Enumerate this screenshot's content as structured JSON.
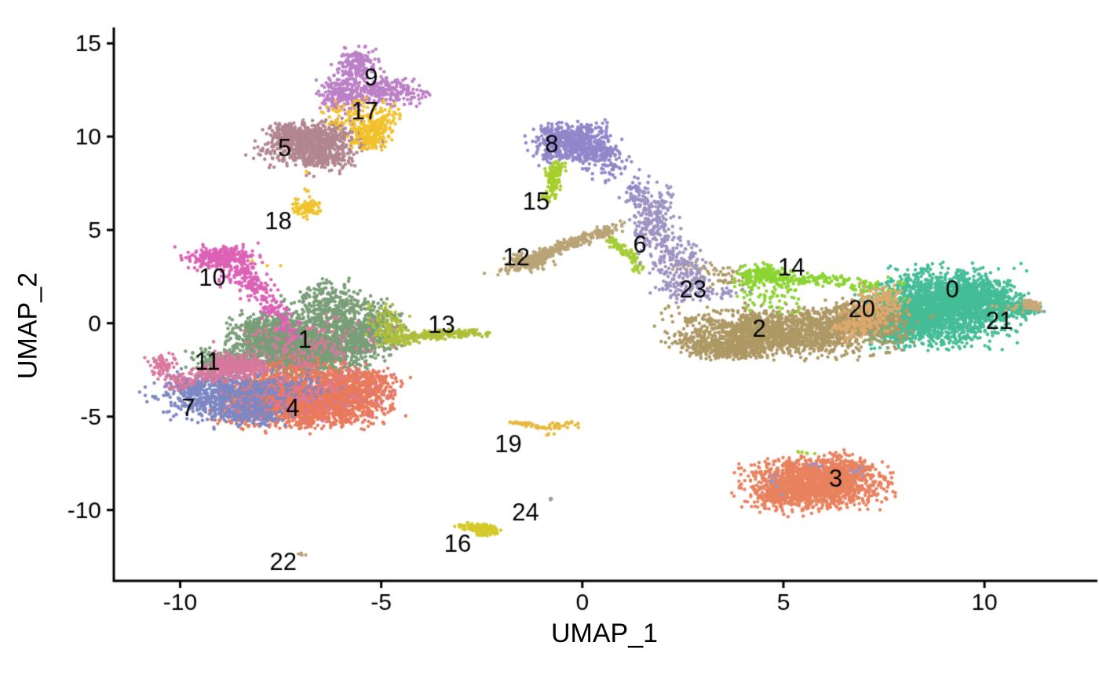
{
  "figure": {
    "xlabel": "UMAP_1",
    "ylabel": "UMAP_2",
    "background": "#ffffff",
    "axis_color": "#000000",
    "label_color": "#000000"
  },
  "chart_data": {
    "type": "scatter",
    "title": "",
    "xlabel": "UMAP_1",
    "ylabel": "UMAP_2",
    "xlim": [
      -11.65,
      12.75
    ],
    "ylim": [
      -13.8,
      15.85
    ],
    "xticks": [
      -10,
      -5,
      0,
      5,
      10
    ],
    "yticks": [
      15,
      10,
      5,
      0,
      -5,
      -10
    ],
    "grid": false,
    "legend": "none",
    "point_radius": 2.2,
    "cluster_label_font_px": 31,
    "tick_label_font_px": 30,
    "clusters": [
      {
        "id": 0,
        "label": "0",
        "color": "#45BD96",
        "label_pos": [
          9.2,
          1.76
        ],
        "blobs": [
          [
            8.9,
            0.85,
            1.0,
            1.1,
            2200,
            0
          ],
          [
            8.15,
            0.25,
            0.5,
            0.5,
            300,
            0
          ],
          [
            9.95,
            1.25,
            0.55,
            0.55,
            350,
            0
          ],
          [
            10.7,
            0.85,
            0.3,
            0.3,
            120,
            0
          ],
          [
            11.1,
            0.75,
            0.22,
            0.15,
            40,
            0
          ],
          [
            7.8,
            -0.55,
            0.4,
            0.45,
            120,
            0
          ],
          [
            7.35,
            0.6,
            0.3,
            0.7,
            60,
            0
          ]
        ]
      },
      {
        "id": 1,
        "label": "1",
        "color": "#7A9E78",
        "label_pos": [
          -6.9,
          -0.97
        ],
        "blobs": [
          [
            -7.0,
            -1.35,
            0.95,
            0.8,
            1700,
            0
          ],
          [
            -6.1,
            0.3,
            0.75,
            0.8,
            450,
            0
          ],
          [
            -7.9,
            -0.5,
            0.5,
            0.6,
            300,
            0
          ],
          [
            -5.35,
            -0.7,
            0.55,
            0.6,
            280,
            0
          ],
          [
            -6.3,
            1.6,
            0.45,
            0.45,
            90,
            0
          ],
          [
            -8.9,
            -2.0,
            0.5,
            0.45,
            200,
            0
          ],
          [
            -4.9,
            0.2,
            0.3,
            0.5,
            60,
            0
          ]
        ]
      },
      {
        "id": 2,
        "label": "2",
        "color": "#AE9965",
        "label_pos": [
          4.4,
          -0.34
        ],
        "blobs": [
          [
            5.2,
            -0.45,
            1.55,
            0.72,
            1400,
            -2
          ],
          [
            4.0,
            -1.0,
            0.7,
            0.5,
            330,
            0
          ],
          [
            6.8,
            0.3,
            0.6,
            0.5,
            300,
            0
          ],
          [
            3.3,
            -1.35,
            0.4,
            0.3,
            90,
            0
          ],
          [
            3.6,
            -1.5,
            0.45,
            0.25,
            90,
            0
          ],
          [
            2.6,
            -0.9,
            0.35,
            0.3,
            40,
            0
          ],
          [
            7.5,
            0.55,
            0.3,
            0.4,
            60,
            0
          ],
          [
            3.6,
            2.5,
            0.35,
            0.3,
            35,
            0
          ]
        ]
      },
      {
        "id": 3,
        "label": "3",
        "color": "#E8825F",
        "label_pos": [
          6.3,
          -8.4
        ],
        "blobs": [
          [
            5.8,
            -8.55,
            0.95,
            0.8,
            1500,
            0
          ],
          [
            5.1,
            -9.2,
            0.5,
            0.4,
            200,
            0
          ],
          [
            6.6,
            -7.95,
            0.4,
            0.35,
            150,
            0
          ]
        ]
      },
      {
        "id": 4,
        "label": "4",
        "color": "#E87A5E",
        "label_pos": [
          -7.2,
          -4.62
        ],
        "blobs": [
          [
            -6.9,
            -4.3,
            1.15,
            0.72,
            1900,
            4
          ],
          [
            -5.6,
            -3.3,
            0.6,
            0.55,
            400,
            0
          ],
          [
            -8.0,
            -3.7,
            0.5,
            0.45,
            300,
            0
          ],
          [
            -7.3,
            -2.7,
            0.8,
            0.45,
            220,
            0
          ]
        ]
      },
      {
        "id": 5,
        "label": "5",
        "color": "#B28691",
        "label_pos": [
          -7.4,
          9.33
        ],
        "blobs": [
          [
            -6.65,
            9.65,
            0.8,
            0.55,
            650,
            35
          ],
          [
            -7.2,
            10.2,
            0.4,
            0.4,
            160,
            0
          ],
          [
            -6.35,
            8.75,
            0.4,
            0.35,
            130,
            0
          ],
          [
            -6.8,
            7.9,
            0.08,
            0.15,
            3,
            0
          ]
        ]
      },
      {
        "id": 6,
        "label": "6",
        "color": "#A5CE37",
        "label_pos": [
          1.43,
          4.16
        ],
        "blobs": [
          [
            1.0,
            3.95,
            0.55,
            0.1,
            90,
            -60
          ],
          [
            1.35,
            2.95,
            0.1,
            0.15,
            14,
            0
          ],
          [
            5.55,
            -6.95,
            0.16,
            0.08,
            6,
            0
          ]
        ]
      },
      {
        "id": 7,
        "label": "7",
        "color": "#7D88C4",
        "label_pos": [
          -9.8,
          -4.62
        ],
        "blobs": [
          [
            -9.0,
            -3.95,
            0.85,
            0.75,
            600,
            20
          ],
          [
            -9.75,
            -3.3,
            0.3,
            0.4,
            110,
            0
          ],
          [
            -8.2,
            -4.9,
            0.5,
            0.35,
            150,
            0
          ],
          [
            -7.8,
            -3.4,
            0.9,
            0.6,
            120,
            0
          ]
        ]
      },
      {
        "id": 8,
        "label": "8",
        "color": "#9187CA",
        "label_pos": [
          -0.76,
          9.54
        ],
        "blobs": [
          [
            -0.25,
            9.8,
            0.52,
            0.58,
            560,
            0
          ],
          [
            0.35,
            9.15,
            0.4,
            0.4,
            120,
            0
          ],
          [
            -0.9,
            9.1,
            0.15,
            0.35,
            25,
            0
          ],
          [
            0.6,
            8.4,
            0.35,
            0.5,
            50,
            0
          ],
          [
            1.35,
            7.0,
            0.3,
            0.55,
            35,
            0
          ]
        ]
      },
      {
        "id": 9,
        "label": "9",
        "color": "#BC80C6",
        "label_pos": [
          -5.25,
          13.11
        ],
        "blobs": [
          [
            -5.6,
            13.85,
            0.28,
            0.5,
            160,
            0
          ],
          [
            -5.1,
            12.5,
            0.72,
            0.45,
            290,
            -15
          ],
          [
            -6.0,
            12.1,
            0.35,
            0.5,
            140,
            0
          ],
          [
            -4.45,
            12.6,
            0.15,
            0.15,
            15,
            0
          ]
        ]
      },
      {
        "id": 10,
        "label": "10",
        "color": "#DC62B6",
        "label_pos": [
          -9.2,
          2.39
        ],
        "blobs": [
          [
            -9.0,
            3.5,
            0.5,
            0.38,
            280,
            0
          ],
          [
            -8.5,
            2.6,
            0.3,
            0.35,
            90,
            0
          ],
          [
            -8.1,
            1.8,
            0.25,
            0.35,
            60,
            0
          ],
          [
            -7.7,
            0.9,
            0.22,
            0.4,
            50,
            0
          ],
          [
            -7.35,
            0.0,
            0.2,
            0.35,
            30,
            0
          ],
          [
            -7.15,
            -0.7,
            0.15,
            0.25,
            15,
            0
          ]
        ]
      },
      {
        "id": 11,
        "label": "11",
        "color": "#D8799E",
        "label_pos": [
          -9.32,
          -2.14
        ],
        "blobs": [
          [
            -8.6,
            -2.35,
            0.45,
            0.4,
            280,
            0
          ],
          [
            -10.45,
            -2.2,
            0.2,
            0.32,
            70,
            0
          ],
          [
            -10.0,
            -3.0,
            0.28,
            0.33,
            50,
            0
          ],
          [
            -9.3,
            -2.7,
            0.3,
            0.25,
            60,
            0
          ],
          [
            -6.8,
            -1.2,
            1.2,
            0.9,
            150,
            0
          ],
          [
            -6.9,
            -3.8,
            1.2,
            0.7,
            90,
            0
          ]
        ]
      },
      {
        "id": 12,
        "label": "12",
        "color": "#B9A478",
        "label_pos": [
          -1.64,
          3.45
        ],
        "blobs": [
          [
            -1.35,
            3.3,
            0.3,
            0.27,
            150,
            0
          ],
          [
            -0.6,
            4.0,
            1.1,
            0.16,
            280,
            40
          ],
          [
            0.55,
            4.9,
            0.25,
            0.14,
            30,
            40
          ],
          [
            2.9,
            2.95,
            0.5,
            0.18,
            22,
            0
          ]
        ]
      },
      {
        "id": 13,
        "label": "13",
        "color": "#AFBF3B",
        "label_pos": [
          -3.5,
          -0.13
        ],
        "blobs": [
          [
            -3.6,
            -0.6,
            0.55,
            0.12,
            130,
            6
          ],
          [
            -4.5,
            -0.85,
            0.35,
            0.2,
            80,
            0
          ],
          [
            -4.85,
            -0.15,
            0.3,
            0.6,
            90,
            0
          ],
          [
            -2.85,
            -0.5,
            0.25,
            0.1,
            30,
            0
          ],
          [
            -2.45,
            -0.55,
            0.12,
            0.08,
            8,
            0
          ]
        ]
      },
      {
        "id": 14,
        "label": "14",
        "color": "#8CD432",
        "label_pos": [
          5.2,
          2.94
        ],
        "blobs": [
          [
            4.45,
            2.6,
            0.4,
            0.32,
            150,
            0
          ],
          [
            5.5,
            2.35,
            0.85,
            0.2,
            130,
            -4
          ],
          [
            4.6,
            1.5,
            0.5,
            0.55,
            70,
            0
          ],
          [
            6.9,
            2.0,
            0.25,
            0.2,
            30,
            0
          ],
          [
            7.6,
            1.75,
            0.25,
            0.4,
            25,
            0
          ]
        ]
      },
      {
        "id": 15,
        "label": "15",
        "color": "#A8CE2C",
        "label_pos": [
          -1.15,
          6.47
        ],
        "blobs": [
          [
            -0.72,
            7.5,
            0.1,
            0.5,
            85,
            0
          ],
          [
            -0.6,
            8.3,
            0.12,
            0.25,
            30,
            0
          ],
          [
            -0.95,
            6.75,
            0.1,
            0.15,
            12,
            0
          ]
        ]
      },
      {
        "id": 16,
        "label": "16",
        "color": "#D5C929",
        "label_pos": [
          -3.1,
          -11.89
        ],
        "blobs": [
          [
            -2.6,
            -10.95,
            0.3,
            0.12,
            90,
            -12
          ],
          [
            -2.35,
            -11.25,
            0.15,
            0.1,
            25,
            0
          ]
        ]
      },
      {
        "id": 17,
        "label": "17",
        "color": "#F2C12B",
        "label_pos": [
          -5.41,
          11.3
        ],
        "blobs": [
          [
            -5.3,
            10.0,
            0.3,
            0.4,
            170,
            0
          ],
          [
            -5.55,
            11.2,
            0.5,
            0.5,
            100,
            0
          ],
          [
            -4.95,
            10.9,
            0.25,
            0.3,
            40,
            0
          ]
        ]
      },
      {
        "id": 18,
        "label": "18",
        "color": "#F0C32C",
        "label_pos": [
          -7.56,
          5.38
        ],
        "blobs": [
          [
            -6.85,
            6.15,
            0.2,
            0.28,
            85,
            0
          ],
          [
            -6.8,
            7.15,
            0.06,
            0.1,
            3,
            0
          ],
          [
            -6.9,
            8.1,
            0.05,
            0.05,
            2,
            0
          ],
          [
            -7.9,
            3.1,
            0.3,
            0.4,
            3,
            0
          ]
        ]
      },
      {
        "id": 19,
        "label": "19",
        "color": "#E8B93D",
        "label_pos": [
          -1.84,
          -6.55
        ],
        "blobs": [
          [
            -1.55,
            -5.35,
            0.22,
            0.05,
            25,
            -8
          ],
          [
            -1.05,
            -5.55,
            0.18,
            0.06,
            20,
            -5
          ],
          [
            -0.6,
            -5.5,
            0.15,
            0.1,
            18,
            0
          ],
          [
            -0.35,
            -5.3,
            0.07,
            0.06,
            6,
            0
          ],
          [
            -0.8,
            -5.95,
            0.05,
            0.05,
            4,
            0
          ],
          [
            -0.15,
            -5.45,
            0.05,
            0.08,
            4,
            0
          ]
        ]
      },
      {
        "id": 20,
        "label": "20",
        "color": "#DFA96E",
        "label_pos": [
          6.95,
          0.71
        ],
        "blobs": [
          [
            7.1,
            0.45,
            0.4,
            0.75,
            140,
            0
          ],
          [
            7.5,
            1.2,
            0.35,
            0.5,
            90,
            0
          ],
          [
            6.7,
            -0.3,
            0.3,
            0.3,
            40,
            0
          ]
        ]
      },
      {
        "id": 21,
        "label": "21",
        "color": "#C9A878",
        "label_pos": [
          10.37,
          0.08
        ],
        "blobs": [
          [
            11.2,
            0.95,
            0.2,
            0.2,
            55,
            0
          ],
          [
            10.7,
            0.85,
            0.25,
            0.15,
            10,
            0
          ]
        ]
      },
      {
        "id": 22,
        "label": "22",
        "color": "#B9A478",
        "label_pos": [
          -7.44,
          -12.86
        ],
        "blobs": [
          [
            -6.93,
            -12.35,
            0.1,
            0.06,
            5,
            0
          ]
        ]
      },
      {
        "id": 23,
        "label": "23",
        "color": "#9E94C2",
        "label_pos": [
          2.75,
          1.76
        ],
        "blobs": [
          [
            1.8,
            5.6,
            0.28,
            1.1,
            200,
            -5
          ],
          [
            2.35,
            3.3,
            0.4,
            0.9,
            160,
            8
          ],
          [
            2.6,
            1.95,
            0.45,
            0.5,
            90,
            0
          ],
          [
            3.3,
            1.55,
            0.5,
            0.25,
            30,
            0
          ],
          [
            1.4,
            6.9,
            0.2,
            0.3,
            25,
            0
          ],
          [
            4.85,
            -8.6,
            0.15,
            0.35,
            7,
            0
          ],
          [
            6.9,
            -7.95,
            0.15,
            0.25,
            6,
            0
          ],
          [
            5.8,
            -7.6,
            0.3,
            0.1,
            5,
            0
          ]
        ]
      },
      {
        "id": 24,
        "label": "24",
        "color": "#9E9E9E",
        "label_pos": [
          -1.41,
          -10.21
        ],
        "blobs": [
          [
            -0.82,
            -9.4,
            0.05,
            0.05,
            3,
            0
          ]
        ]
      }
    ]
  }
}
